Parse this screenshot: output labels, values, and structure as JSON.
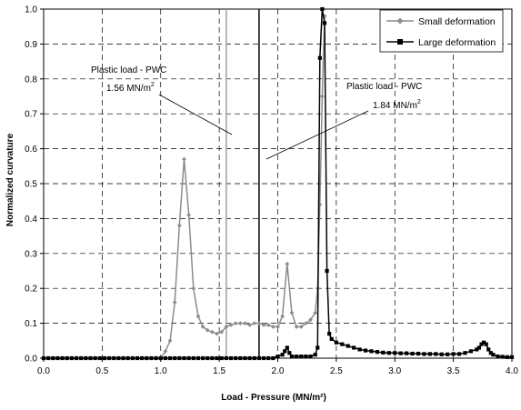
{
  "chart_data": {
    "type": "line",
    "title": "",
    "xlabel": "Load - Pressure (MN/m²)",
    "ylabel": "Normalized curvature",
    "xlim": [
      0,
      4
    ],
    "ylim": [
      0,
      1
    ],
    "xticks": [
      0.0,
      0.5,
      1.0,
      1.5,
      2.0,
      2.5,
      3.0,
      3.5,
      4.0
    ],
    "yticks": [
      0.0,
      0.1,
      0.2,
      0.3,
      0.4,
      0.5,
      0.6,
      0.7,
      0.8,
      0.9,
      1.0
    ],
    "xtick_labels": [
      "0.0",
      "0.5",
      "1.0",
      "1.5",
      "2.0",
      "2.5",
      "3.0",
      "3.5",
      "4.0"
    ],
    "ytick_labels": [
      "0.0",
      "0.1",
      "0.2",
      "0.3",
      "0.4",
      "0.5",
      "0.6",
      "0.7",
      "0.8",
      "0.9",
      "1.0"
    ],
    "grid": true,
    "legend_position": "top-right",
    "series": [
      {
        "name": "Small deformation",
        "color": "#8c8c8c",
        "marker": "diamond",
        "x": [
          0.0,
          0.04,
          0.08,
          0.12,
          0.16,
          0.2,
          0.24,
          0.28,
          0.32,
          0.36,
          0.4,
          0.44,
          0.48,
          0.52,
          0.56,
          0.6,
          0.64,
          0.68,
          0.72,
          0.76,
          0.8,
          0.84,
          0.88,
          0.92,
          0.96,
          1.0,
          1.04,
          1.08,
          1.12,
          1.16,
          1.2,
          1.24,
          1.28,
          1.32,
          1.36,
          1.4,
          1.44,
          1.48,
          1.52,
          1.56,
          1.6,
          1.64,
          1.68,
          1.72,
          1.76,
          1.8,
          1.84,
          1.88,
          1.92,
          1.96,
          2.0,
          2.04,
          2.08,
          2.12,
          2.16,
          2.2,
          2.24,
          2.28,
          2.32,
          2.34,
          2.36,
          2.38,
          2.4
        ],
        "y": [
          0,
          0,
          0,
          0,
          0,
          0,
          0,
          0,
          0,
          0,
          0,
          0,
          0,
          0,
          0,
          0,
          0,
          0,
          0,
          0,
          0,
          0,
          0,
          0,
          0,
          0,
          0.02,
          0.05,
          0.16,
          0.38,
          0.57,
          0.41,
          0.2,
          0.12,
          0.09,
          0.08,
          0.075,
          0.07,
          0.075,
          0.09,
          0.095,
          0.1,
          0.1,
          0.1,
          0.095,
          0.1,
          0.1,
          0.095,
          0.095,
          0.09,
          0.09,
          0.12,
          0.27,
          0.13,
          0.09,
          0.09,
          0.1,
          0.11,
          0.13,
          0.2,
          0.44,
          0.75,
          0.98
        ]
      },
      {
        "name": "Large deformation",
        "color": "#000000",
        "marker": "square",
        "x": [
          0.0,
          0.04,
          0.08,
          0.12,
          0.16,
          0.2,
          0.24,
          0.28,
          0.32,
          0.36,
          0.4,
          0.44,
          0.48,
          0.52,
          0.56,
          0.6,
          0.64,
          0.68,
          0.72,
          0.76,
          0.8,
          0.84,
          0.88,
          0.92,
          0.96,
          1.0,
          1.04,
          1.08,
          1.12,
          1.16,
          1.2,
          1.24,
          1.28,
          1.32,
          1.36,
          1.4,
          1.44,
          1.48,
          1.52,
          1.56,
          1.6,
          1.64,
          1.68,
          1.72,
          1.76,
          1.8,
          1.84,
          1.88,
          1.92,
          1.96,
          2.0,
          2.04,
          2.06,
          2.08,
          2.1,
          2.12,
          2.16,
          2.2,
          2.24,
          2.28,
          2.32,
          2.34,
          2.36,
          2.38,
          2.4,
          2.42,
          2.44,
          2.46,
          2.5,
          2.55,
          2.6,
          2.65,
          2.7,
          2.75,
          2.8,
          2.85,
          2.9,
          2.95,
          3.0,
          3.05,
          3.1,
          3.15,
          3.2,
          3.25,
          3.3,
          3.35,
          3.4,
          3.45,
          3.5,
          3.55,
          3.6,
          3.65,
          3.7,
          3.72,
          3.74,
          3.76,
          3.78,
          3.8,
          3.82,
          3.84,
          3.88,
          3.92,
          3.96,
          4.0
        ],
        "y": [
          0,
          0,
          0,
          0,
          0,
          0,
          0,
          0,
          0,
          0,
          0,
          0,
          0,
          0,
          0,
          0,
          0,
          0,
          0,
          0,
          0,
          0,
          0,
          0,
          0,
          0,
          0,
          0,
          0,
          0,
          0,
          0,
          0,
          0,
          0,
          0,
          0,
          0,
          0,
          0,
          0,
          0,
          0,
          0,
          0,
          0,
          0,
          0,
          0,
          0,
          0.005,
          0.01,
          0.02,
          0.03,
          0.015,
          0.005,
          0.005,
          0.005,
          0.005,
          0.005,
          0.01,
          0.03,
          0.86,
          1.0,
          0.96,
          0.25,
          0.07,
          0.055,
          0.045,
          0.04,
          0.035,
          0.03,
          0.025,
          0.022,
          0.02,
          0.018,
          0.016,
          0.015,
          0.015,
          0.014,
          0.014,
          0.013,
          0.013,
          0.012,
          0.012,
          0.012,
          0.011,
          0.011,
          0.012,
          0.012,
          0.015,
          0.02,
          0.025,
          0.03,
          0.04,
          0.045,
          0.04,
          0.025,
          0.015,
          0.01,
          0.005,
          0.004,
          0.003,
          0.003
        ]
      }
    ],
    "reference_lines": [
      {
        "x": 1.56,
        "color": "#a0a0a0"
      },
      {
        "x": 1.84,
        "color": "#000000"
      }
    ],
    "annotations": [
      {
        "line1": "Plastic load - PWC",
        "line2_value": "1.56 MN/m",
        "superscript": "2"
      },
      {
        "line1": "Plastic load - PWC",
        "line2_value": "1.84 MN/m",
        "superscript": "2"
      }
    ]
  }
}
